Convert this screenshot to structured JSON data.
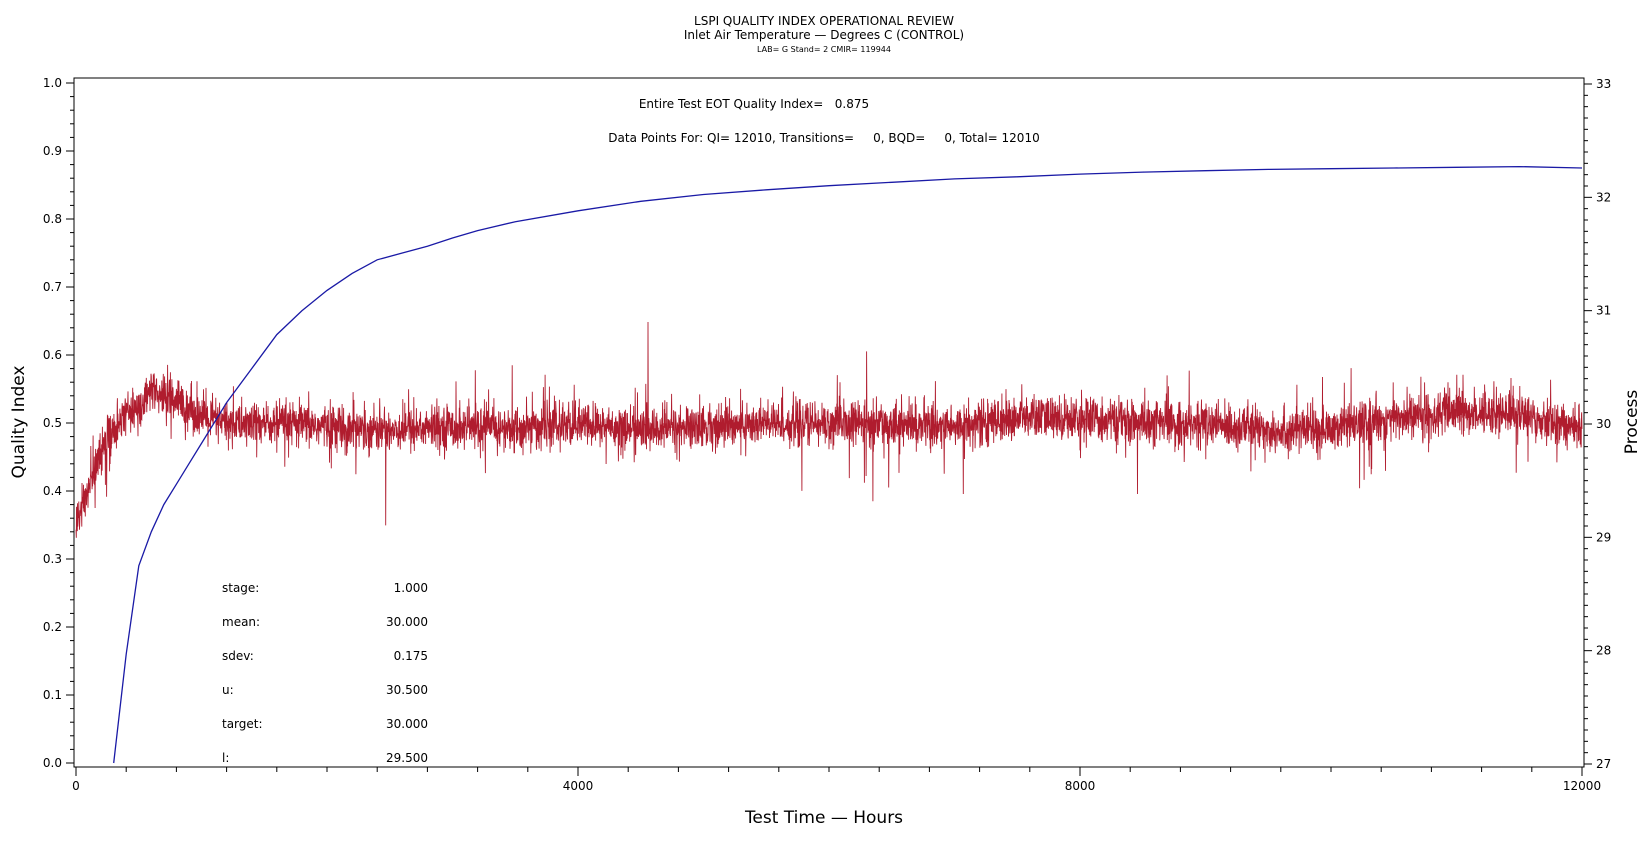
{
  "chart_data": {
    "type": "line",
    "title": "LSPI QUALITY INDEX OPERATIONAL REVIEW",
    "subtitle": "Inlet Air Temperature — Degrees C (CONTROL)",
    "subsubtitle": "LAB= G Stand= 2 CMIR= 119944",
    "xlabel": "Test Time — Hours",
    "ylabel": "Quality Index",
    "y2label": "Process",
    "xlim": [
      0,
      12000
    ],
    "ylim": [
      0,
      1.0
    ],
    "y2lim": [
      27,
      33
    ],
    "x_ticks": [
      0,
      4000,
      8000,
      12000
    ],
    "y_ticks": [
      0.0,
      0.1,
      0.2,
      0.3,
      0.4,
      0.5,
      0.6,
      0.7,
      0.8,
      0.9,
      1.0
    ],
    "y_tick_labels": [
      "0.0",
      "0.1",
      "0.2",
      "0.3",
      "0.4",
      "0.5",
      "0.6",
      "0.7",
      "0.8",
      "0.9",
      "1.0"
    ],
    "y2_ticks": [
      27,
      28,
      29,
      30,
      31,
      32,
      33
    ],
    "grid": false,
    "annotations": [
      "Entire Test EOT Quality Index=   0.875",
      "Data Points For: QI= 12010, Transitions=     0, BQD=     0, Total= 12010"
    ],
    "stats": [
      {
        "label": "stage:",
        "value": "1.000"
      },
      {
        "label": "mean:",
        "value": "30.000"
      },
      {
        "label": "sdev:",
        "value": "0.175"
      },
      {
        "label": "u:",
        "value": "30.500"
      },
      {
        "label": "target:",
        "value": "30.000"
      },
      {
        "label": "l:",
        "value": "29.500"
      }
    ],
    "series": [
      {
        "axis": "left",
        "color": "#1a1aa6",
        "x": [
          300,
          400,
          500,
          600,
          700,
          800,
          900,
          1000,
          1200,
          1400,
          1600,
          1800,
          2000,
          2200,
          2400,
          2600,
          2800,
          3000,
          3200,
          3500,
          4000,
          4500,
          5000,
          5500,
          6000,
          6500,
          7000,
          7500,
          8000,
          8500,
          9000,
          9500,
          10000,
          10500,
          11000,
          11500,
          12000
        ],
        "values": [
          0.0,
          0.16,
          0.29,
          0.34,
          0.38,
          0.41,
          0.44,
          0.47,
          0.53,
          0.58,
          0.63,
          0.665,
          0.695,
          0.72,
          0.74,
          0.75,
          0.76,
          0.772,
          0.783,
          0.796,
          0.812,
          0.826,
          0.836,
          0.843,
          0.849,
          0.854,
          0.859,
          0.862,
          0.866,
          0.869,
          0.871,
          0.873,
          0.874,
          0.875,
          0.876,
          0.877,
          0.875
        ]
      },
      {
        "axis": "right",
        "color": "#b01c2e",
        "noise_sd": 0.175,
        "x": [
          0,
          100,
          200,
          300,
          400,
          500,
          600,
          700,
          800,
          900,
          1000,
          1200,
          1500,
          2000,
          2500,
          3000,
          3500,
          4000,
          4500,
          5000,
          5500,
          6000,
          6500,
          7000,
          7500,
          8000,
          8500,
          9000,
          9500,
          10000,
          10500,
          11000,
          11500,
          12000
        ],
        "values": [
          29.1,
          29.45,
          29.75,
          29.95,
          30.1,
          30.15,
          30.25,
          30.25,
          30.2,
          30.15,
          30.05,
          30.0,
          30.0,
          29.98,
          29.95,
          29.98,
          29.95,
          30.0,
          29.95,
          29.98,
          30.0,
          30.0,
          30.0,
          29.98,
          30.05,
          30.05,
          30.0,
          30.0,
          29.95,
          29.95,
          30.05,
          30.1,
          30.1,
          29.95
        ]
      }
    ]
  }
}
